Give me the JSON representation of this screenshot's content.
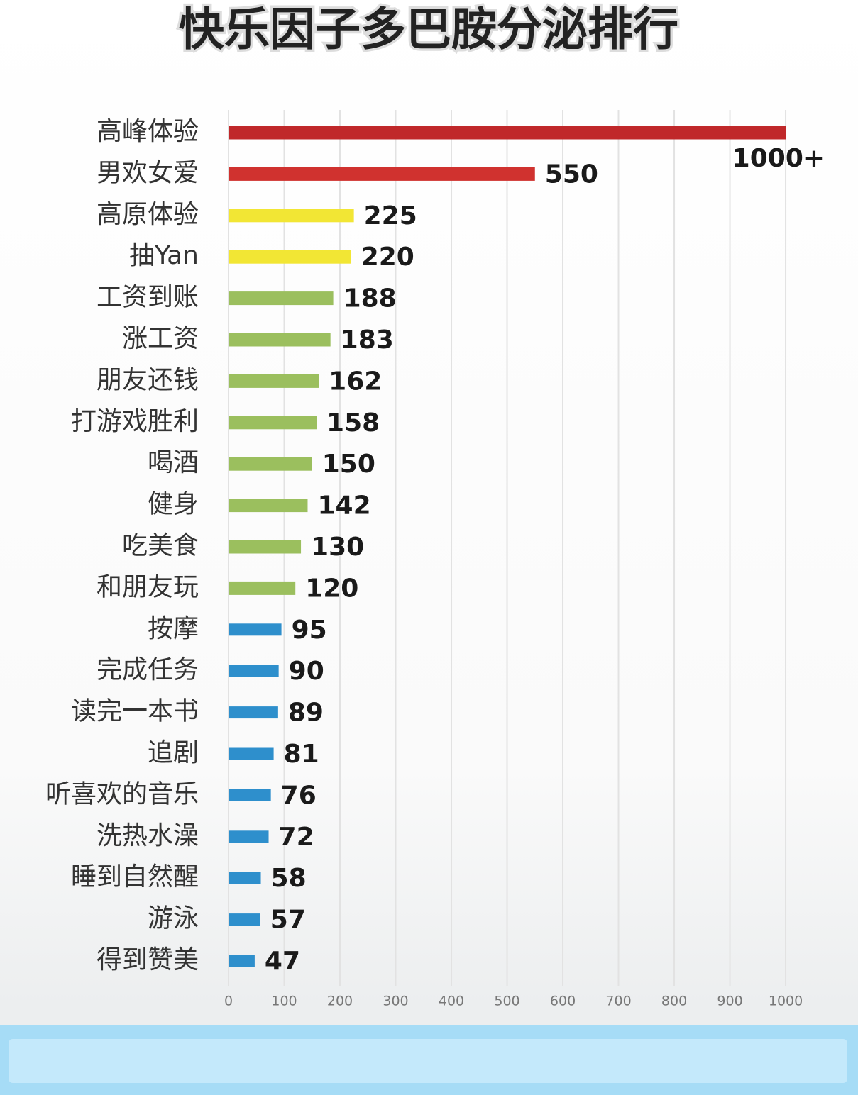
{
  "chart_data": {
    "type": "bar",
    "orientation": "horizontal",
    "title": "快乐因子多巴胺分泌排行",
    "categories": [
      "高峰体验",
      "男欢女爱",
      "高原体验",
      "抽Yan",
      "工资到账",
      "涨工资",
      "朋友还钱",
      "打游戏胜利",
      "喝酒",
      "健身",
      "吃美食",
      "和朋友玩",
      "按摩",
      "完成任务",
      "读完一本书",
      "追剧",
      "听喜欢的音乐",
      "洗热水澡",
      "睡到自然醒",
      "游泳",
      "得到赞美"
    ],
    "values": [
      1000,
      550,
      225,
      220,
      188,
      183,
      162,
      158,
      150,
      142,
      130,
      120,
      95,
      90,
      89,
      81,
      76,
      72,
      58,
      57,
      47
    ],
    "value_labels": [
      "1000+",
      "550",
      "225",
      "220",
      "188",
      "183",
      "162",
      "158",
      "150",
      "142",
      "130",
      "120",
      "95",
      "90",
      "89",
      "81",
      "76",
      "72",
      "58",
      "57",
      "47"
    ],
    "colors": [
      "#c0282a",
      "#d0322f",
      "#f2e634",
      "#f2e634",
      "#9bbf5e",
      "#9bbf5e",
      "#9bbf5e",
      "#9bbf5e",
      "#9bbf5e",
      "#9bbf5e",
      "#9bbf5e",
      "#9bbf5e",
      "#2e8fcc",
      "#2e8fcc",
      "#2e8fcc",
      "#2e8fcc",
      "#2e8fcc",
      "#2e8fcc",
      "#2e8fcc",
      "#2e8fcc",
      "#2e8fcc"
    ],
    "xlim": [
      0,
      1070
    ],
    "xticks": [
      0,
      100,
      200,
      300,
      400,
      500,
      600,
      700,
      800,
      900,
      1000
    ],
    "grid": true
  }
}
